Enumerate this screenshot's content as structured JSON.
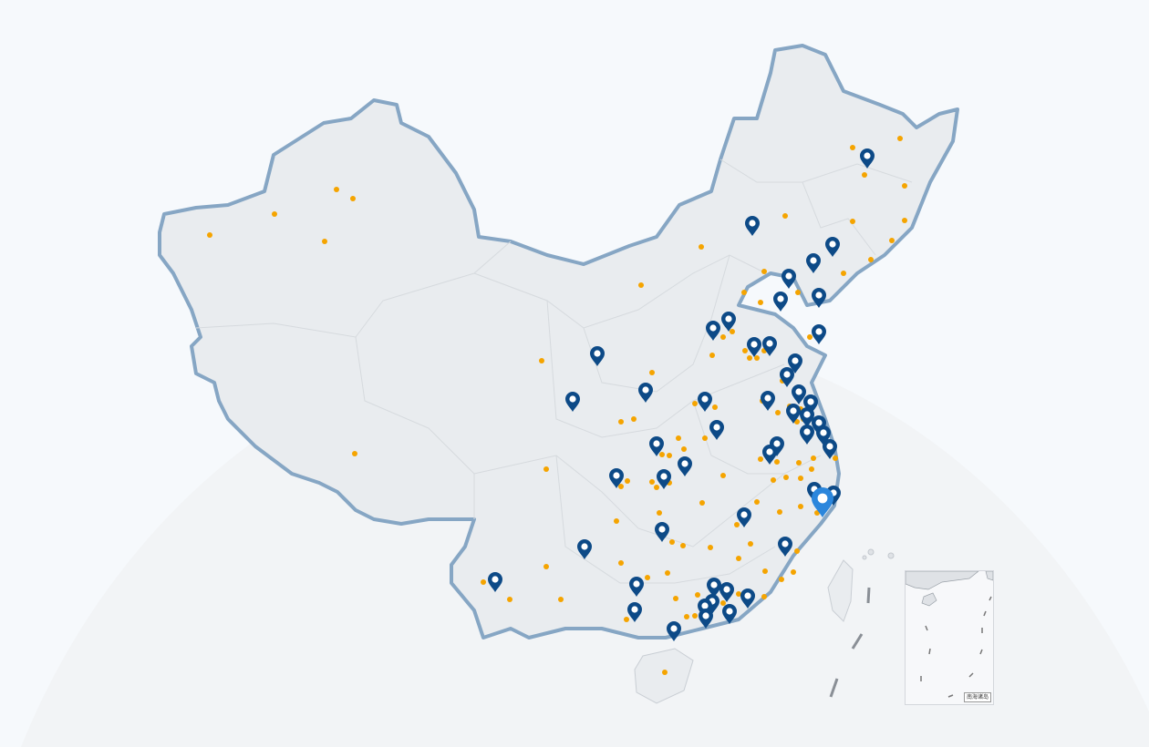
{
  "map": {
    "colors": {
      "land": "#e9ecef",
      "border": "#86a6c4",
      "province_line": "#d6dade",
      "pin": "#0d4a87",
      "pin_selected": "#2b86dc",
      "dot": "#f5a400",
      "background": "#f6f9fc"
    },
    "inset": {
      "label": "南海诸岛"
    },
    "icons": {
      "pin": "map-pin-icon",
      "dot": "city-dot"
    }
  }
}
